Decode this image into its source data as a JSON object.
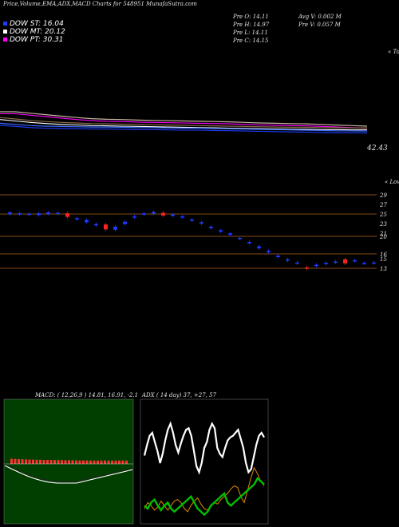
{
  "header": {
    "title": "Price,Volume,EMA,ADX,MACD Charts for 548951 MunafaSutra.com"
  },
  "legend": [
    {
      "label": "DOW ST: 16.04",
      "color": "#1e3cff"
    },
    {
      "label": "DOW MT: 20.12",
      "color": "#ffffff"
    },
    {
      "label": "DOW PT: 30.31",
      "color": "#ff00ff"
    }
  ],
  "price_info": {
    "col1": [
      "Pre O: 14.11",
      "Pre H: 14.97",
      "Pre L: 14.11",
      "Pre C: 14.15"
    ],
    "col2": [
      "Avg V: 0.002 M",
      "Pre V: 0.057 M"
    ]
  },
  "ema_panel": {
    "right_top": "« Topo",
    "last_value": "42.43"
  },
  "price_panel": {
    "right_top": "« Lowes",
    "levels": [
      "29",
      "27",
      "25",
      "23",
      "21",
      "20",
      "16",
      "15",
      "13"
    ]
  },
  "indicators": {
    "macd_title": "MACD: ( 12,26,9 ) 14.81, 16.91, -2.1",
    "adx_title": "ADX ( 14 day) 37, +27, 57"
  },
  "colors": {
    "up": "#1e3cff",
    "down": "#ff2020",
    "ema_long": "#ff00ff",
    "level_line": "#b5651d"
  },
  "chart_data": [
    {
      "type": "line",
      "title": "EMA",
      "series": [
        {
          "values": [
            48,
            48,
            47.5,
            47,
            46.5,
            46,
            45.6,
            45.4,
            45.3,
            45.1,
            45,
            44.9,
            44.8,
            44.7,
            44.6,
            44.5,
            44.3,
            44.1,
            44,
            43.9,
            43.8,
            43.6,
            43.4,
            43.2,
            43
          ]
        },
        {
          "values": [
            46,
            45.5,
            45,
            44.6,
            44.3,
            44.1,
            43.9,
            43.8,
            43.7,
            43.6,
            43.5,
            43.4,
            43.3,
            43.2,
            43.1,
            43,
            42.9,
            42.8,
            42.7,
            42.6,
            42.6,
            42.5,
            42.5,
            42.4,
            42.43
          ]
        },
        {
          "values": [
            44,
            43.6,
            43.2,
            43,
            42.9,
            42.8,
            42.7,
            42.7,
            42.6,
            42.5,
            42.5,
            42.4,
            42.3,
            42.3,
            42.2,
            42.1,
            42,
            41.9,
            41.8,
            41.7,
            41.6,
            41.5,
            41.4,
            41.4,
            41.3
          ]
        }
      ]
    },
    {
      "type": "candlestick",
      "title": "Price",
      "candles": [
        {
          "o": 25.5,
          "c": 25.1,
          "up": true
        },
        {
          "o": 25.0,
          "c": 25.3,
          "up": true
        },
        {
          "o": 25.2,
          "c": 25.0,
          "up": true
        },
        {
          "o": 24.9,
          "c": 25.3,
          "up": true
        },
        {
          "o": 25.2,
          "c": 25.5,
          "up": true
        },
        {
          "o": 25.4,
          "c": 25.3,
          "up": true
        },
        {
          "o": 25.3,
          "c": 24.5,
          "up": false
        },
        {
          "o": 24.2,
          "c": 24.0,
          "up": true
        },
        {
          "o": 23.8,
          "c": 23.3,
          "up": true
        },
        {
          "o": 22.9,
          "c": 22.6,
          "up": true
        },
        {
          "o": 22.8,
          "c": 21.7,
          "up": false
        },
        {
          "o": 22.3,
          "c": 21.6,
          "up": true
        },
        {
          "o": 22.9,
          "c": 23.4,
          "up": true
        },
        {
          "o": 24.4,
          "c": 24.6,
          "up": true
        },
        {
          "o": 25.0,
          "c": 25.3,
          "up": true
        },
        {
          "o": 25.2,
          "c": 25.6,
          "up": true
        },
        {
          "o": 25.4,
          "c": 24.8,
          "up": false
        },
        {
          "o": 25.0,
          "c": 24.8,
          "up": true
        },
        {
          "o": 24.6,
          "c": 24.4,
          "up": true
        },
        {
          "o": 23.9,
          "c": 23.7,
          "up": true
        },
        {
          "o": 23.3,
          "c": 23.0,
          "up": true
        },
        {
          "o": 22.3,
          "c": 22.0,
          "up": true
        },
        {
          "o": 21.5,
          "c": 21.2,
          "up": true
        },
        {
          "o": 20.8,
          "c": 20.5,
          "up": true
        },
        {
          "o": 19.8,
          "c": 19.6,
          "up": true
        },
        {
          "o": 18.9,
          "c": 18.6,
          "up": true
        },
        {
          "o": 17.9,
          "c": 17.5,
          "up": true
        },
        {
          "o": 16.9,
          "c": 16.6,
          "up": true
        },
        {
          "o": 15.8,
          "c": 15.5,
          "up": true
        },
        {
          "o": 15.0,
          "c": 14.7,
          "up": true
        },
        {
          "o": 14.3,
          "c": 14.1,
          "up": true
        },
        {
          "o": 13.2,
          "c": 12.9,
          "up": false
        },
        {
          "o": 13.8,
          "c": 13.5,
          "up": true
        },
        {
          "o": 14.0,
          "c": 14.2,
          "up": true
        },
        {
          "o": 14.3,
          "c": 14.5,
          "up": true
        },
        {
          "o": 14.1,
          "c": 15.0,
          "up": false
        },
        {
          "o": 14.6,
          "c": 14.8,
          "up": true
        },
        {
          "o": 14.2,
          "c": 14.1,
          "up": true
        },
        {
          "o": 14.3,
          "c": 14.15,
          "up": true
        }
      ]
    },
    {
      "type": "bar",
      "title": "MACD",
      "values": [
        3.2,
        3.1,
        3.0,
        2.9,
        2.8,
        2.7,
        2.7,
        2.6,
        2.6,
        2.5,
        2.5,
        2.5,
        2.4,
        2.4,
        2.4,
        2.3,
        2.3,
        2.3,
        2.2,
        2.2,
        2.2,
        2.2,
        2.1,
        2.1,
        2.1,
        2.1,
        2.1,
        2.1,
        2.1,
        2.1,
        2.1,
        2.1,
        2.1
      ]
    },
    {
      "type": "line",
      "title": "ADX",
      "series": [
        {
          "values": [
            45,
            52,
            58,
            60,
            54,
            48,
            40,
            46,
            55,
            62,
            66,
            60,
            52,
            47,
            53,
            58,
            62,
            63,
            58,
            48,
            38,
            34,
            40,
            50,
            54,
            62,
            66,
            63,
            50,
            46,
            44,
            50,
            55,
            57,
            58,
            60,
            62,
            56,
            50,
            40,
            34,
            36,
            44,
            52,
            58,
            60,
            57
          ]
        },
        {
          "values": [
            10,
            14,
            12,
            9,
            11,
            15,
            12,
            9,
            12,
            15,
            16,
            14,
            10,
            8,
            12,
            15,
            17,
            13,
            10,
            9,
            12,
            14,
            13,
            16,
            18,
            20,
            23,
            25,
            24,
            18,
            14,
            22,
            30,
            37,
            33,
            28,
            25
          ]
        },
        {
          "values": [
            12,
            10,
            14,
            16,
            12,
            9,
            12,
            14,
            10,
            8,
            10,
            12,
            14,
            16,
            18,
            14,
            10,
            8,
            6,
            8,
            12,
            14,
            16,
            18,
            20,
            14,
            12,
            14,
            16,
            18,
            20,
            22,
            24,
            26,
            30,
            28,
            26
          ]
        }
      ]
    }
  ]
}
